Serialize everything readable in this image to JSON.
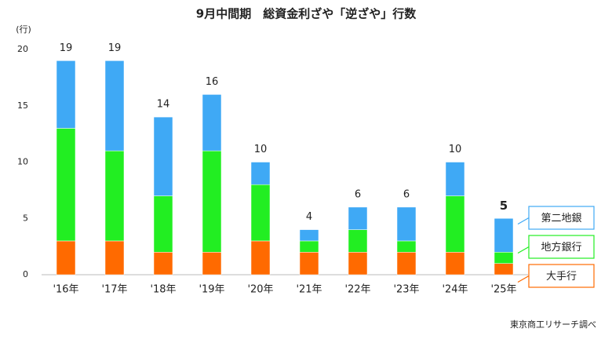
{
  "chart_data": {
    "type": "stacked_bar",
    "title": "9月中間期　総資金利ざや「逆ざや」行数",
    "y_unit_label": "(行)",
    "source": "東京商工リサーチ調べ",
    "categories": [
      "'16年",
      "'17年",
      "'18年",
      "'19年",
      "'20年",
      "'21年",
      "'22年",
      "'23年",
      "'24年",
      "'25年"
    ],
    "series": [
      {
        "name": "大手行",
        "color": "#ff6a00",
        "values": [
          3,
          3,
          2,
          2,
          3,
          2,
          2,
          2,
          2,
          1
        ]
      },
      {
        "name": "地方銀行",
        "color": "#22ee22",
        "values": [
          10,
          8,
          5,
          9,
          5,
          1,
          2,
          1,
          5,
          1
        ]
      },
      {
        "name": "第二地銀",
        "color": "#3fa9f5",
        "values": [
          6,
          8,
          7,
          5,
          2,
          1,
          2,
          3,
          3,
          3
        ]
      }
    ],
    "totals": [
      19,
      19,
      14,
      16,
      10,
      4,
      6,
      6,
      10,
      5
    ],
    "ylim": [
      0,
      20
    ],
    "yticks": [
      0,
      5,
      10,
      15,
      20
    ],
    "grid": false,
    "legend": "right"
  }
}
